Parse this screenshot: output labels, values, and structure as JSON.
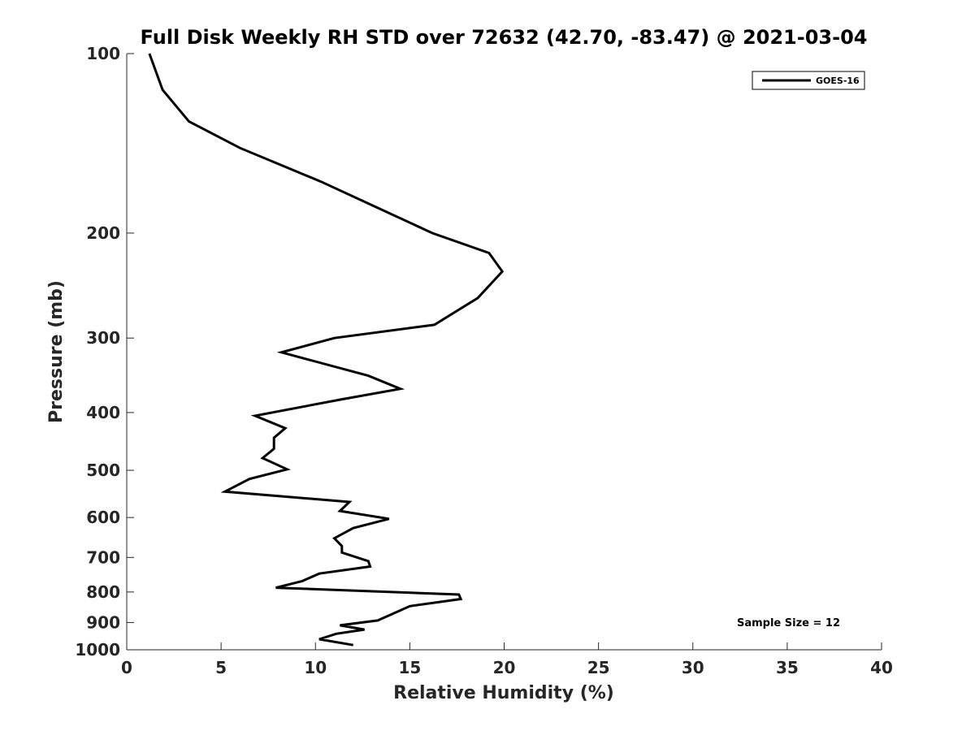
{
  "chart_data": {
    "type": "line",
    "title": "Full Disk Weekly RH STD over 72632 (42.70, -83.47) @ 2021-03-04",
    "xlabel": "Relative Humidity (%)",
    "ylabel": "Pressure (mb)",
    "xlim": [
      0,
      40
    ],
    "ylim": [
      100,
      1000
    ],
    "yscale": "log",
    "y_reversed": true,
    "x_ticks": [
      0,
      5,
      10,
      15,
      20,
      25,
      30,
      35,
      40
    ],
    "x_tick_labels": [
      "0",
      "5",
      "10",
      "15",
      "20",
      "25",
      "30",
      "35",
      "40"
    ],
    "y_ticks": [
      100,
      200,
      300,
      400,
      500,
      600,
      700,
      800,
      900,
      1000
    ],
    "y_tick_labels": [
      "100",
      "200",
      "300",
      "400",
      "500",
      "600",
      "700",
      "800",
      "900",
      "1000"
    ],
    "grid": false,
    "legend_position": "top-right",
    "annotation": "Sample Size = 12",
    "series": [
      {
        "name": "GOES-16",
        "color": "#000000",
        "rh": [
          1.2,
          1.9,
          3.3,
          6.0,
          10.3,
          16.2,
          19.2,
          19.9,
          18.6,
          16.3,
          11.0,
          8.2,
          12.8,
          14.5,
          11.4,
          6.8,
          8.4,
          7.8,
          7.8,
          7.2,
          8.5,
          6.5,
          5.2,
          11.8,
          11.3,
          13.9,
          12.0,
          11.0,
          11.4,
          11.4,
          12.8,
          12.9,
          10.2,
          9.3,
          7.9,
          17.6,
          17.7,
          15.0,
          14.1,
          13.3,
          11.3,
          12.6,
          11.1,
          10.2,
          12.0
        ],
        "pressure": [
          100,
          115,
          130,
          144,
          164,
          200,
          216,
          232,
          257,
          285,
          300,
          317,
          347,
          365,
          380,
          405,
          425,
          441,
          460,
          477,
          498,
          517,
          543,
          565,
          585,
          603,
          625,
          650,
          670,
          687,
          710,
          725,
          745,
          767,
          787,
          808,
          822,
          845,
          870,
          893,
          910,
          925,
          940,
          960,
          982
        ]
      }
    ]
  }
}
